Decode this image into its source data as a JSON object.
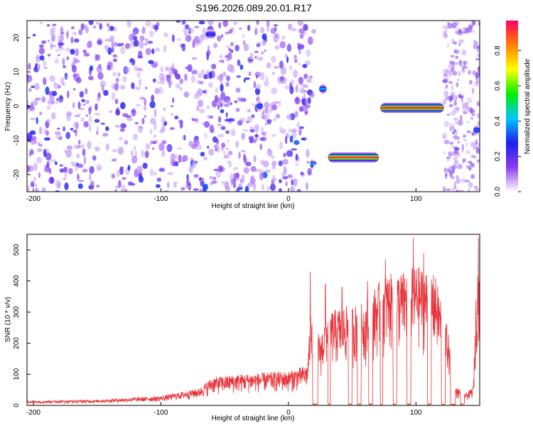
{
  "title": "S196.2026.089.20.01.R17",
  "chart_data": [
    {
      "type": "heatmap",
      "xlabel": "Height of straight line (km)",
      "ylabel": "Frequency (Hz)",
      "xlim": [
        -205,
        150
      ],
      "ylim": [
        -25,
        25
      ],
      "xticks": [
        -200,
        -100,
        0,
        100
      ],
      "yticks": [
        20,
        10,
        0,
        -10,
        -20
      ],
      "colorbar": {
        "label": "Normalized spectral amplitude",
        "ticks": [
          0.0,
          0.2,
          0.4,
          0.6,
          0.8
        ],
        "range": [
          0.0,
          0.97
        ],
        "colormap": [
          "#ffffff",
          "#8a3cf0",
          "#1e1ef0",
          "#00c8ff",
          "#00f000",
          "#ffff00",
          "#ff8000",
          "#ff0060"
        ]
      },
      "noise_band": {
        "x_from": -205,
        "x_to": 20,
        "amplitude": "low (0.0-0.25)"
      },
      "features": [
        {
          "x_from": -65,
          "x_to": -57,
          "freq": 21,
          "amplitude": 0.3
        },
        {
          "x_from": -25,
          "x_to": -20,
          "freq": 0,
          "amplitude": 0.35
        },
        {
          "x_from": 17,
          "x_to": 20,
          "freq": -17,
          "amplitude": 0.45
        },
        {
          "x_from": 24,
          "x_to": 30,
          "freq": 5,
          "amplitude": 0.4
        },
        {
          "x_from": 31,
          "x_to": 71,
          "freq": -15,
          "amplitude": 0.95
        },
        {
          "x_from": 72,
          "x_to": 122,
          "freq": -0.5,
          "amplitude": 0.97
        },
        {
          "x_from": 145,
          "x_to": 150,
          "freq": -7,
          "amplitude": 0.35
        }
      ]
    },
    {
      "type": "line",
      "xlabel": "Height of straight line (km)",
      "ylabel": "SNR (10 * v/v)",
      "xlim": [
        -205,
        150
      ],
      "ylim": [
        0,
        550
      ],
      "xticks": [
        -200,
        -100,
        0,
        100
      ],
      "yticks": [
        0,
        100,
        200,
        300,
        400,
        500
      ],
      "color": "#e8343a",
      "envelope": {
        "x": [
          -205,
          -150,
          -100,
          -70,
          -60,
          -40,
          -20,
          0,
          15,
          18,
          25,
          30,
          45,
          60,
          75,
          90,
          100,
          115,
          125,
          130,
          140,
          145,
          148,
          150
        ],
        "y": [
          15,
          18,
          30,
          55,
          90,
          100,
          105,
          110,
          130,
          350,
          220,
          300,
          320,
          330,
          420,
          430,
          450,
          420,
          250,
          60,
          40,
          60,
          490,
          380
        ]
      },
      "gaps": [
        [
          19,
          23
        ],
        [
          31,
          33
        ],
        [
          47,
          50
        ],
        [
          54,
          57
        ],
        [
          63,
          66
        ],
        [
          72,
          74
        ],
        [
          82,
          85
        ],
        [
          93,
          96
        ],
        [
          109,
          112
        ],
        [
          120,
          123
        ],
        [
          127,
          131
        ],
        [
          135,
          138
        ]
      ],
      "spikes": [
        {
          "x": 17,
          "y": 430
        },
        {
          "x": 29,
          "y": 390
        },
        {
          "x": 42,
          "y": 380
        },
        {
          "x": 62,
          "y": 400
        },
        {
          "x": 76,
          "y": 470
        },
        {
          "x": 98,
          "y": 540
        },
        {
          "x": 106,
          "y": 490
        },
        {
          "x": 149,
          "y": 540
        }
      ]
    }
  ]
}
